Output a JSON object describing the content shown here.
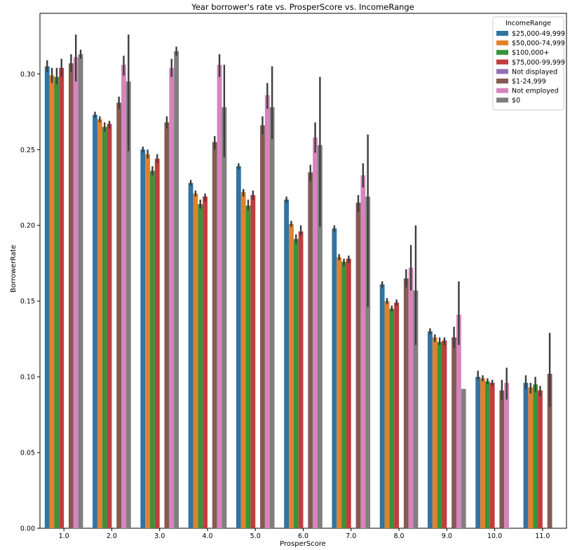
{
  "chart_data": {
    "type": "bar",
    "title": "Year borrower's rate vs. ProsperScore vs. IncomeRange",
    "xlabel": "ProsperScore",
    "ylabel": "BorrowerRate",
    "ylim": [
      0,
      0.34
    ],
    "yticks": [
      "0.00",
      "0.05",
      "0.10",
      "0.15",
      "0.20",
      "0.25",
      "0.30"
    ],
    "categories": [
      "1.0",
      "2.0",
      "3.0",
      "4.0",
      "5.0",
      "6.0",
      "7.0",
      "8.0",
      "9.0",
      "10.0",
      "11.0"
    ],
    "legend": {
      "title": "IncomeRange",
      "position": "upper right"
    },
    "series": [
      {
        "name": "$25,000-49,999",
        "color": "#3274a1",
        "values": [
          0.305,
          0.273,
          0.25,
          0.228,
          0.239,
          0.217,
          0.198,
          0.161,
          0.13,
          0.1,
          0.096
        ],
        "err": [
          [
            0.301,
            0.309
          ],
          [
            0.271,
            0.275
          ],
          [
            0.248,
            0.252
          ],
          [
            0.226,
            0.23
          ],
          [
            0.237,
            0.241
          ],
          [
            0.215,
            0.219
          ],
          [
            0.196,
            0.2
          ],
          [
            0.159,
            0.163
          ],
          [
            0.128,
            0.132
          ],
          [
            0.098,
            0.104
          ],
          [
            0.092,
            0.101
          ]
        ]
      },
      {
        "name": "$50,000-74,999",
        "color": "#e1812c",
        "values": [
          0.299,
          0.27,
          0.247,
          0.221,
          0.222,
          0.201,
          0.179,
          0.15,
          0.126,
          0.099,
          0.093
        ],
        "err": [
          [
            0.294,
            0.304
          ],
          [
            0.268,
            0.272
          ],
          [
            0.244,
            0.25
          ],
          [
            0.219,
            0.223
          ],
          [
            0.219,
            0.224
          ],
          [
            0.199,
            0.203
          ],
          [
            0.177,
            0.181
          ],
          [
            0.148,
            0.152
          ],
          [
            0.123,
            0.128
          ],
          [
            0.097,
            0.101
          ],
          [
            0.089,
            0.096
          ]
        ]
      },
      {
        "name": "$100,000+",
        "color": "#3a923a",
        "values": [
          0.298,
          0.265,
          0.236,
          0.214,
          0.213,
          0.191,
          0.176,
          0.145,
          0.123,
          0.097,
          0.095
        ],
        "err": [
          [
            0.293,
            0.304
          ],
          [
            0.262,
            0.268
          ],
          [
            0.233,
            0.239
          ],
          [
            0.211,
            0.217
          ],
          [
            0.21,
            0.217
          ],
          [
            0.188,
            0.194
          ],
          [
            0.173,
            0.178
          ],
          [
            0.143,
            0.147
          ],
          [
            0.121,
            0.126
          ],
          [
            0.095,
            0.099
          ],
          [
            0.09,
            0.1
          ]
        ]
      },
      {
        "name": "$75,000-99,999",
        "color": "#c03d3e",
        "values": [
          0.304,
          0.267,
          0.244,
          0.219,
          0.22,
          0.196,
          0.178,
          0.149,
          0.124,
          0.096,
          0.091
        ],
        "err": [
          [
            0.298,
            0.31
          ],
          [
            0.264,
            0.269
          ],
          [
            0.241,
            0.247
          ],
          [
            0.216,
            0.221
          ],
          [
            0.217,
            0.223
          ],
          [
            0.193,
            0.2
          ],
          [
            0.175,
            0.18
          ],
          [
            0.147,
            0.151
          ],
          [
            0.121,
            0.126
          ],
          [
            0.094,
            0.098
          ],
          [
            0.087,
            0.094
          ]
        ]
      },
      {
        "name": "Not displayed",
        "color": "#9372b2",
        "values": [
          null,
          null,
          null,
          null,
          null,
          null,
          null,
          null,
          null,
          null,
          null
        ],
        "err": [
          null,
          null,
          null,
          null,
          null,
          null,
          null,
          null,
          null,
          null,
          null
        ]
      },
      {
        "name": "$1-24,999",
        "color": "#845b53",
        "values": [
          0.307,
          0.281,
          0.268,
          0.255,
          0.266,
          0.235,
          0.215,
          0.165,
          0.126,
          0.091,
          0.102
        ],
        "err": [
          [
            0.301,
            0.313
          ],
          [
            0.277,
            0.285
          ],
          [
            0.264,
            0.272
          ],
          [
            0.25,
            0.259
          ],
          [
            0.26,
            0.272
          ],
          [
            0.229,
            0.24
          ],
          [
            0.209,
            0.22
          ],
          [
            0.159,
            0.171
          ],
          [
            0.119,
            0.133
          ],
          [
            0.085,
            0.098
          ],
          [
            0.08,
            0.129
          ]
        ]
      },
      {
        "name": "Not employed",
        "color": "#d684bd",
        "values": [
          0.311,
          0.306,
          0.304,
          0.306,
          0.286,
          0.258,
          0.233,
          0.172,
          0.141,
          0.096,
          null
        ],
        "err": [
          [
            0.295,
            0.326
          ],
          [
            0.299,
            0.312
          ],
          [
            0.298,
            0.31
          ],
          [
            0.298,
            0.313
          ],
          [
            0.277,
            0.294
          ],
          [
            0.248,
            0.268
          ],
          [
            0.225,
            0.241
          ],
          [
            0.157,
            0.187
          ],
          [
            0.121,
            0.163
          ],
          [
            0.085,
            0.106
          ],
          null
        ]
      },
      {
        "name": "$0",
        "color": "#7f7f7f",
        "values": [
          0.313,
          0.295,
          0.315,
          0.278,
          0.278,
          0.253,
          0.219,
          0.157,
          0.092,
          null,
          null
        ],
        "err": [
          [
            0.31,
            0.316
          ],
          [
            0.249,
            0.326
          ],
          [
            0.312,
            0.318
          ],
          [
            0.245,
            0.306
          ],
          [
            0.257,
            0.305
          ],
          [
            0.199,
            0.298
          ],
          [
            0.146,
            0.26
          ],
          [
            0.121,
            0.2
          ],
          null,
          null,
          null
        ]
      }
    ]
  }
}
